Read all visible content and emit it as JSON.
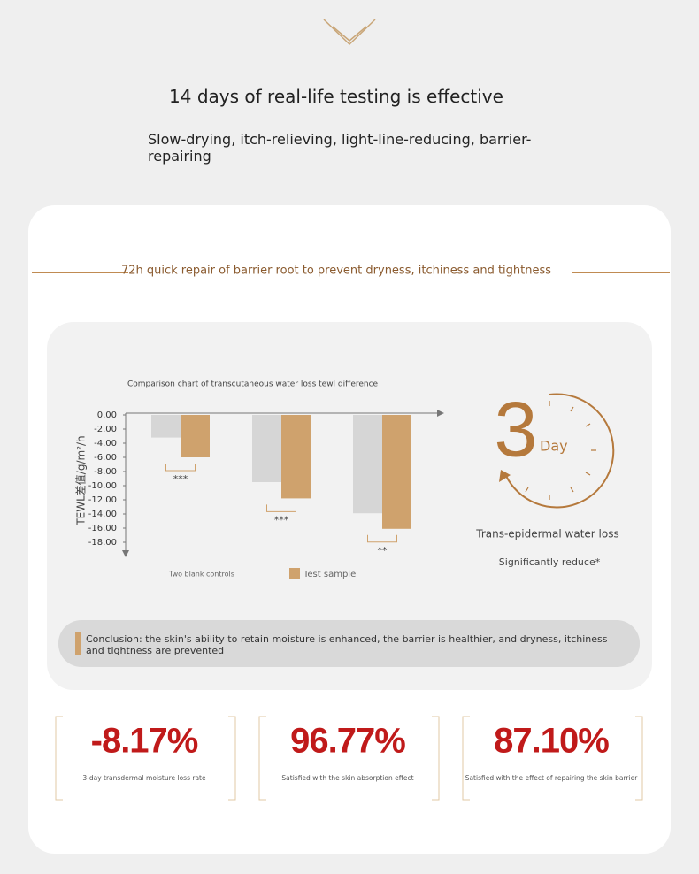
{
  "header": {
    "title": "14 days of real-life testing is effective",
    "subtitle": "Slow-drying, itch-relieving, light-line-reducing, barrier-repairing"
  },
  "section_title": "72h quick repair of barrier root to prevent dryness, itchiness and tightness",
  "chart_data": {
    "type": "bar",
    "title": "Comparison chart of transcutaneous water loss tewl difference",
    "y_label": "TEWL差值/g/m²/h",
    "categories": [
      null,
      null,
      null
    ],
    "series": [
      {
        "name": "Two blank controls",
        "color": "#d6d6d6",
        "values": [
          -3.2,
          -9.5,
          -13.9
        ]
      },
      {
        "name": "Test sample",
        "color": "#cfa26d",
        "values": [
          -6,
          -11.8,
          -16.1
        ]
      }
    ],
    "annotations": [
      "***",
      "***",
      "**"
    ],
    "ylim": [
      0,
      -20
    ],
    "yticks": [
      {
        "value": 0,
        "label": "0.00"
      },
      {
        "value": -2,
        "label": "-2.00"
      },
      {
        "value": -4,
        "label": "-4.00"
      },
      {
        "value": -6,
        "label": "-6.00"
      },
      {
        "value": -8,
        "label": "-8.00"
      },
      {
        "value": -10,
        "label": "-10.00"
      },
      {
        "value": -12,
        "label": "-12.00"
      },
      {
        "value": -14,
        "label": "-14.00"
      },
      {
        "value": -16,
        "label": "-16.00"
      },
      {
        "value": -18,
        "label": "-18.00"
      }
    ],
    "grid": false
  },
  "highlight": {
    "number": "3",
    "unit": "Day",
    "caption": "Trans-epidermal water loss",
    "note": "Significantly reduce*"
  },
  "conclusion": "Conclusion: the skin's ability to retain moisture is enhanced, the barrier is healthier, and dryness, itchiness and tightness are prevented",
  "stats": [
    {
      "value": "-8.17%",
      "label": "3-day transdermal moisture loss rate"
    },
    {
      "value": "96.77%",
      "label": "Satisfied with the skin absorption effect"
    },
    {
      "value": "87.10%",
      "label": "Satisfied with the effect of repairing the skin barrier"
    }
  ]
}
